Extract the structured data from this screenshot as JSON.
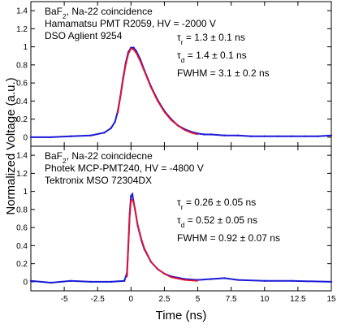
{
  "chart_data": {
    "type": "line",
    "shared_x": {
      "label": "Time (ns)",
      "range": [
        -7.5,
        15
      ],
      "ticks": [
        -5,
        -2.5,
        0,
        2.5,
        5,
        7.5,
        10,
        12.5,
        15
      ],
      "tick_labels": [
        "-5",
        "-2.5",
        "0",
        "2.5",
        "5",
        "7.5",
        "10",
        "12.5",
        "15"
      ]
    },
    "shared_y_label": "Normalized Voltage (a.u.)",
    "colors": {
      "data": "#1a1ad6",
      "fit": "#e8102a",
      "axis": "#000000"
    },
    "panels": [
      {
        "annotation_lines": [
          "BaF2, Na-22 coincidence",
          "Hamamatsu PMT R2059, HV = -2000 V",
          "DSO Aglient 9254"
        ],
        "results": [
          "τr = 1.3 ± 0.1 ns",
          "τd = 1.4 ± 0.1 ns",
          "FWHM = 3.1 ± 0.2 ns"
        ],
        "ylim": [
          -0.1,
          1.5
        ],
        "y_ticks": [
          0,
          0.2,
          0.4,
          0.6,
          0.8,
          1,
          1.2,
          1.4
        ],
        "y_tick_labels": [
          "0",
          "0.2",
          "0.4",
          "0.6",
          "0.8",
          "1",
          "1.2",
          "1.4"
        ],
        "data_series": {
          "x": [
            -7.5,
            -6,
            -4.5,
            -3,
            -2,
            -1.5,
            -1.2,
            -1,
            -0.8,
            -0.6,
            -0.4,
            -0.2,
            0,
            0.2,
            0.4,
            0.7,
            1,
            1.5,
            2,
            2.5,
            3,
            3.5,
            4,
            4.5,
            5,
            5.5,
            6,
            7,
            8,
            9,
            10,
            11,
            12,
            13,
            14,
            15
          ],
          "y": [
            0,
            0,
            0.01,
            0.02,
            0.05,
            0.1,
            0.17,
            0.28,
            0.45,
            0.65,
            0.82,
            0.94,
            0.99,
            0.99,
            0.95,
            0.86,
            0.74,
            0.56,
            0.41,
            0.29,
            0.2,
            0.13,
            0.09,
            0.06,
            0.04,
            0.03,
            0.03,
            0.02,
            0.02,
            0.01,
            0.01,
            0.01,
            0.01,
            0.01,
            0.01,
            0.02
          ]
        },
        "fit_series": {
          "x": [
            -1,
            -0.8,
            -0.6,
            -0.4,
            -0.2,
            0,
            0.2,
            0.4,
            0.7,
            1,
            1.5,
            2,
            2.5,
            3,
            3.5,
            4,
            4.5,
            5
          ],
          "y": [
            0.26,
            0.44,
            0.63,
            0.8,
            0.92,
            0.98,
            0.97,
            0.93,
            0.84,
            0.73,
            0.55,
            0.4,
            0.28,
            0.19,
            0.13,
            0.08,
            0.05,
            0.03
          ]
        }
      },
      {
        "annotation_lines": [
          "BaF2, Na-22 coincidecne",
          "Photek MCP-PMT240, HV = -4800 V",
          "Tektronix MSO 72304DX"
        ],
        "results": [
          "τr = 0.26 ± 0.05 ns",
          "τd = 0.52 ± 0.05 ns",
          "FWHM = 0.92 ± 0.07 ns"
        ],
        "ylim": [
          -0.1,
          1.5
        ],
        "y_ticks": [
          0,
          0.2,
          0.4,
          0.6,
          0.8,
          1,
          1.2,
          1.4
        ],
        "y_tick_labels": [
          "0",
          "0.2",
          "0.4",
          "0.6",
          "0.8",
          "1",
          "1.2",
          "1.4"
        ],
        "data_series": {
          "x": [
            -7.5,
            -6,
            -4.5,
            -3,
            -1.5,
            -0.5,
            -0.3,
            -0.2,
            -0.1,
            0,
            0.1,
            0.2,
            0.3,
            0.5,
            0.8,
            1,
            1.5,
            2,
            2.5,
            3,
            4,
            5,
            6,
            7,
            8,
            10,
            12,
            15
          ],
          "y": [
            0.01,
            -0.01,
            0.01,
            0,
            0,
            0.01,
            0.1,
            0.4,
            0.75,
            0.95,
            0.97,
            0.88,
            0.8,
            0.62,
            0.45,
            0.36,
            0.22,
            0.14,
            0.09,
            0.06,
            0.03,
            0.02,
            0.03,
            0.04,
            0.02,
            0.01,
            0.01,
            0
          ]
        },
        "fit_series": {
          "x": [
            -0.3,
            -0.2,
            -0.1,
            0,
            0.1,
            0.2,
            0.3,
            0.5,
            0.8,
            1,
            1.5,
            2,
            2.5,
            3,
            4,
            5
          ],
          "y": [
            0.05,
            0.38,
            0.72,
            0.9,
            0.91,
            0.87,
            0.8,
            0.63,
            0.46,
            0.37,
            0.22,
            0.14,
            0.09,
            0.05,
            0.02,
            0.01
          ]
        }
      }
    ]
  }
}
